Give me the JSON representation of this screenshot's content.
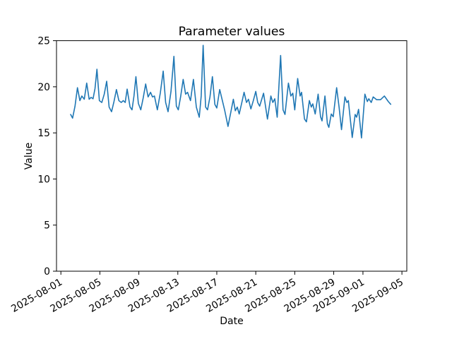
{
  "figure": {
    "background": "#ffffff",
    "frame_color": "#000000"
  },
  "chart_data": {
    "type": "line",
    "title": "Parameter values",
    "xlabel": "Date",
    "ylabel": "Value",
    "grid": false,
    "legend": null,
    "line_color": "#1f77b4",
    "line_width": 1.6,
    "ylim": [
      0,
      25
    ],
    "yticks": [
      0,
      5,
      10,
      15,
      20,
      25
    ],
    "x_unit": "days since 2025-08-01",
    "xlim_days": [
      -0.45,
      35.5
    ],
    "xticks": [
      {
        "day": 0,
        "label": "2025-08-01"
      },
      {
        "day": 4,
        "label": "2025-08-05"
      },
      {
        "day": 8,
        "label": "2025-08-09"
      },
      {
        "day": 12,
        "label": "2025-08-13"
      },
      {
        "day": 16,
        "label": "2025-08-17"
      },
      {
        "day": 20,
        "label": "2025-08-21"
      },
      {
        "day": 24,
        "label": "2025-08-25"
      },
      {
        "day": 28,
        "label": "2025-08-29"
      },
      {
        "day": 31,
        "label": "2025-09-01"
      },
      {
        "day": 35,
        "label": "2025-09-05"
      }
    ],
    "series": [
      {
        "color": "#1f77b4",
        "points": [
          [
            1.0,
            17.0
          ],
          [
            1.2,
            16.6
          ],
          [
            1.45,
            17.9
          ],
          [
            1.7,
            19.9
          ],
          [
            1.95,
            18.5
          ],
          [
            2.15,
            19.0
          ],
          [
            2.4,
            18.65
          ],
          [
            2.65,
            20.4
          ],
          [
            2.9,
            18.65
          ],
          [
            3.1,
            18.85
          ],
          [
            3.3,
            18.7
          ],
          [
            3.5,
            19.8
          ],
          [
            3.7,
            21.9
          ],
          [
            3.95,
            18.5
          ],
          [
            4.2,
            18.3
          ],
          [
            4.45,
            19.2
          ],
          [
            4.7,
            20.6
          ],
          [
            4.95,
            17.8
          ],
          [
            5.2,
            17.3
          ],
          [
            5.45,
            18.4
          ],
          [
            5.7,
            19.7
          ],
          [
            5.95,
            18.5
          ],
          [
            6.2,
            18.3
          ],
          [
            6.4,
            18.5
          ],
          [
            6.6,
            18.3
          ],
          [
            6.8,
            19.75
          ],
          [
            7.1,
            17.8
          ],
          [
            7.3,
            17.5
          ],
          [
            7.5,
            19.0
          ],
          [
            7.7,
            21.1
          ],
          [
            7.95,
            18.2
          ],
          [
            8.2,
            17.5
          ],
          [
            8.45,
            18.8
          ],
          [
            8.7,
            20.3
          ],
          [
            8.95,
            18.9
          ],
          [
            9.2,
            19.4
          ],
          [
            9.4,
            18.9
          ],
          [
            9.6,
            19.0
          ],
          [
            9.9,
            17.5
          ],
          [
            10.2,
            19.3
          ],
          [
            10.5,
            21.7
          ],
          [
            10.75,
            18.3
          ],
          [
            11.0,
            17.3
          ],
          [
            11.3,
            19.5
          ],
          [
            11.6,
            23.3
          ],
          [
            11.85,
            17.9
          ],
          [
            12.05,
            17.5
          ],
          [
            12.3,
            19.0
          ],
          [
            12.55,
            20.8
          ],
          [
            12.8,
            19.2
          ],
          [
            13.0,
            19.4
          ],
          [
            13.3,
            18.5
          ],
          [
            13.6,
            20.8
          ],
          [
            13.9,
            17.8
          ],
          [
            14.2,
            16.7
          ],
          [
            14.4,
            19.0
          ],
          [
            14.6,
            24.5
          ],
          [
            14.85,
            17.8
          ],
          [
            15.05,
            17.5
          ],
          [
            15.3,
            18.9
          ],
          [
            15.55,
            21.1
          ],
          [
            15.8,
            18.1
          ],
          [
            16.0,
            17.7
          ],
          [
            16.3,
            19.7
          ],
          [
            16.55,
            18.6
          ],
          [
            16.8,
            17.5
          ],
          [
            17.15,
            15.7
          ],
          [
            17.45,
            17.3
          ],
          [
            17.7,
            18.65
          ],
          [
            17.9,
            17.4
          ],
          [
            18.1,
            17.8
          ],
          [
            18.3,
            17.05
          ],
          [
            18.55,
            18.2
          ],
          [
            18.8,
            19.4
          ],
          [
            19.05,
            18.3
          ],
          [
            19.25,
            18.65
          ],
          [
            19.5,
            17.6
          ],
          [
            19.75,
            18.5
          ],
          [
            20.0,
            19.5
          ],
          [
            20.2,
            18.3
          ],
          [
            20.4,
            17.9
          ],
          [
            20.6,
            18.6
          ],
          [
            20.8,
            19.3
          ],
          [
            21.2,
            16.5
          ],
          [
            21.55,
            19.0
          ],
          [
            21.75,
            18.3
          ],
          [
            21.95,
            18.7
          ],
          [
            22.2,
            16.7
          ],
          [
            22.55,
            23.4
          ],
          [
            22.8,
            17.5
          ],
          [
            23.0,
            17.0
          ],
          [
            23.35,
            20.4
          ],
          [
            23.6,
            19.0
          ],
          [
            23.8,
            19.3
          ],
          [
            24.0,
            17.5
          ],
          [
            24.3,
            20.9
          ],
          [
            24.55,
            19.0
          ],
          [
            24.7,
            19.4
          ],
          [
            25.0,
            16.5
          ],
          [
            25.2,
            16.2
          ],
          [
            25.5,
            18.5
          ],
          [
            25.7,
            17.8
          ],
          [
            25.85,
            18.15
          ],
          [
            26.1,
            17.05
          ],
          [
            26.4,
            19.2
          ],
          [
            26.65,
            16.75
          ],
          [
            26.8,
            16.3
          ],
          [
            27.1,
            19.0
          ],
          [
            27.35,
            16.0
          ],
          [
            27.5,
            15.6
          ],
          [
            27.75,
            17.05
          ],
          [
            27.95,
            16.75
          ],
          [
            28.3,
            19.9
          ],
          [
            28.55,
            17.8
          ],
          [
            28.8,
            15.35
          ],
          [
            29.15,
            18.9
          ],
          [
            29.35,
            18.3
          ],
          [
            29.5,
            18.5
          ],
          [
            29.9,
            14.5
          ],
          [
            30.2,
            17.0
          ],
          [
            30.35,
            16.7
          ],
          [
            30.55,
            17.55
          ],
          [
            30.85,
            14.45
          ],
          [
            31.2,
            19.2
          ],
          [
            31.45,
            18.4
          ],
          [
            31.6,
            18.7
          ],
          [
            31.85,
            18.3
          ],
          [
            32.05,
            18.9
          ],
          [
            32.4,
            18.6
          ],
          [
            32.8,
            18.6
          ],
          [
            33.2,
            19.0
          ],
          [
            33.6,
            18.4
          ],
          [
            33.85,
            18.1
          ]
        ]
      }
    ]
  }
}
